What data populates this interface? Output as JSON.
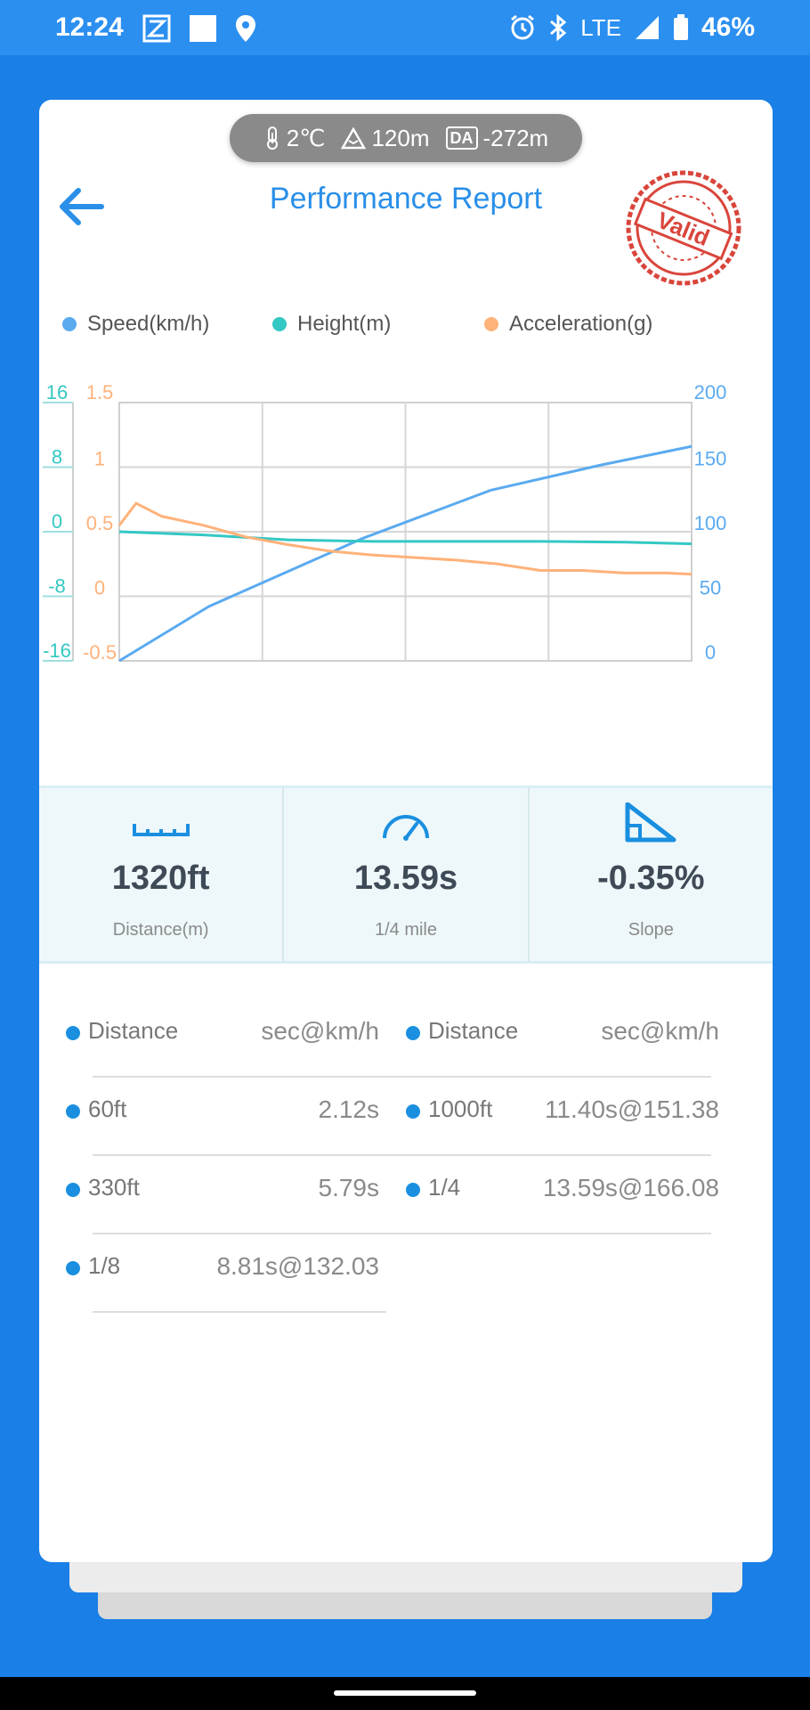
{
  "status_bar": {
    "time": "12:24",
    "network": "LTE",
    "battery": "46%"
  },
  "conditions": {
    "temperature": "2℃",
    "altitude": "120m",
    "da_label": "DA",
    "density_altitude": "-272m"
  },
  "header": {
    "title": "Performance Report",
    "stamp_text": "Valid"
  },
  "legend": [
    {
      "name": "Speed(km/h)",
      "color": "#5aaaf0"
    },
    {
      "name": "Height(m)",
      "color": "#33c8c3"
    },
    {
      "name": "Acceleration(g)",
      "color": "#ffb27a"
    }
  ],
  "chart_data": {
    "type": "line",
    "grid": true,
    "legend_position": "top",
    "axes": {
      "height_ticks": [
        "16",
        "8",
        "0",
        "-8",
        "-16"
      ],
      "accel_ticks": [
        "1.5",
        "1",
        "0.5",
        "0",
        "-0.5"
      ],
      "speed_ticks": [
        "200",
        "150",
        "100",
        "50",
        "0"
      ],
      "height_range": [
        -16,
        16
      ],
      "accel_range": [
        -0.5,
        1.5
      ],
      "speed_range": [
        0,
        200
      ],
      "x_range": [
        0,
        13.59
      ]
    },
    "series": [
      {
        "name": "Speed(km/h)",
        "color": "#5aaaf0",
        "axis": "speed",
        "x": [
          0,
          2.12,
          5.79,
          8.81,
          11.4,
          13.59
        ],
        "y": [
          0,
          42,
          95,
          132.03,
          151.38,
          166.08
        ]
      },
      {
        "name": "Height(m)",
        "color": "#33c8c3",
        "axis": "height",
        "x": [
          0,
          2,
          4,
          6,
          8,
          10,
          12,
          13.59
        ],
        "y": [
          0,
          -0.4,
          -1.0,
          -1.2,
          -1.2,
          -1.2,
          -1.3,
          -1.5
        ]
      },
      {
        "name": "Acceleration(g)",
        "color": "#ffb27a",
        "axis": "accel",
        "x": [
          0,
          0.4,
          1,
          2,
          3,
          4,
          5,
          6,
          7,
          8,
          9,
          10,
          11,
          12,
          13,
          13.59
        ],
        "y": [
          0.55,
          0.72,
          0.62,
          0.55,
          0.46,
          0.4,
          0.35,
          0.32,
          0.3,
          0.28,
          0.25,
          0.2,
          0.2,
          0.18,
          0.18,
          0.17
        ]
      }
    ]
  },
  "stats": [
    {
      "value": "1320ft",
      "label": "Distance(m)",
      "icon": "ruler-icon"
    },
    {
      "value": "13.59s",
      "label": "1/4 mile",
      "icon": "speedometer-icon"
    },
    {
      "value": "-0.35%",
      "label": "Slope",
      "icon": "slope-icon"
    }
  ],
  "results": {
    "left": [
      {
        "key": "Distance",
        "value": "sec@km/h"
      },
      {
        "key": "60ft",
        "value": "2.12s"
      },
      {
        "key": "330ft",
        "value": "5.79s"
      },
      {
        "key": "1/8",
        "value": "8.81s@132.03"
      }
    ],
    "right": [
      {
        "key": "Distance",
        "value": "sec@km/h"
      },
      {
        "key": "1000ft",
        "value": "11.40s@151.38"
      },
      {
        "key": "1/4",
        "value": "13.59s@166.08"
      }
    ]
  }
}
